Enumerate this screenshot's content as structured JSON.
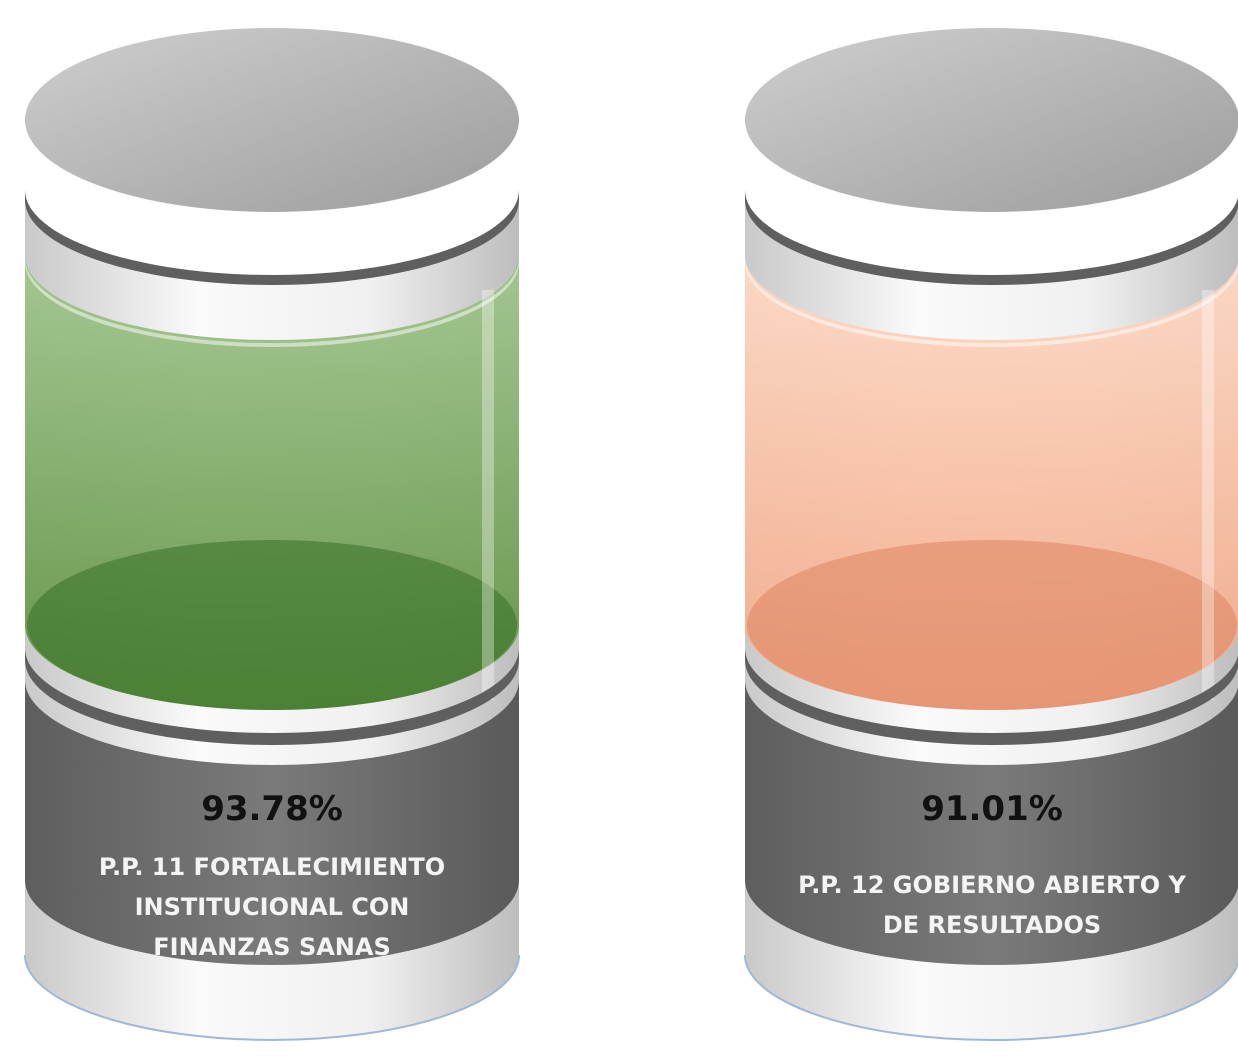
{
  "items": [
    {
      "percent": "93.78%",
      "label_lines": [
        "P.P. 11 FORTALECIMIENTO",
        "INSTITUCIONAL CON",
        "FINANZAS SANAS"
      ]
    },
    {
      "percent": "91.01%",
      "label_lines": [
        "P.P. 12 GOBIERNO ABIERTO Y",
        "DE RESULTADOS"
      ]
    }
  ]
}
